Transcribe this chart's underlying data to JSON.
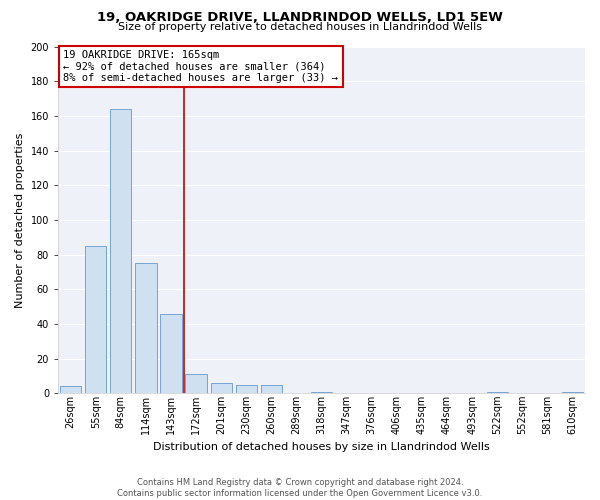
{
  "title": "19, OAKRIDGE DRIVE, LLANDRINDOD WELLS, LD1 5EW",
  "subtitle": "Size of property relative to detached houses in Llandrindod Wells",
  "xlabel": "Distribution of detached houses by size in Llandrindod Wells",
  "ylabel": "Number of detached properties",
  "bar_labels": [
    "26sqm",
    "55sqm",
    "84sqm",
    "114sqm",
    "143sqm",
    "172sqm",
    "201sqm",
    "230sqm",
    "260sqm",
    "289sqm",
    "318sqm",
    "347sqm",
    "376sqm",
    "406sqm",
    "435sqm",
    "464sqm",
    "493sqm",
    "522sqm",
    "552sqm",
    "581sqm",
    "610sqm"
  ],
  "bar_values": [
    4,
    85,
    164,
    75,
    46,
    11,
    6,
    5,
    5,
    0,
    1,
    0,
    0,
    0,
    0,
    0,
    0,
    1,
    0,
    0,
    1
  ],
  "bar_face_color": "#cfe0f0",
  "bar_edge_color": "#6699cc",
  "vline_index": 5,
  "vline_color": "#cc0000",
  "annotation_title": "19 OAKRIDGE DRIVE: 165sqm",
  "annotation_line1": "← 92% of detached houses are smaller (364)",
  "annotation_line2": "8% of semi-detached houses are larger (33) →",
  "annotation_box_facecolor": "#ffffff",
  "annotation_box_edgecolor": "#cc0000",
  "ylim": [
    0,
    200
  ],
  "yticks": [
    0,
    20,
    40,
    60,
    80,
    100,
    120,
    140,
    160,
    180,
    200
  ],
  "footer_line1": "Contains HM Land Registry data © Crown copyright and database right 2024.",
  "footer_line2": "Contains public sector information licensed under the Open Government Licence v3.0.",
  "fig_background": "#ffffff",
  "plot_background": "#eef2f8",
  "grid_color": "#ffffff",
  "title_fontsize": 9.5,
  "subtitle_fontsize": 8,
  "ylabel_fontsize": 8,
  "xlabel_fontsize": 8,
  "tick_fontsize": 7,
  "annotation_fontsize": 7.5,
  "footer_fontsize": 6
}
